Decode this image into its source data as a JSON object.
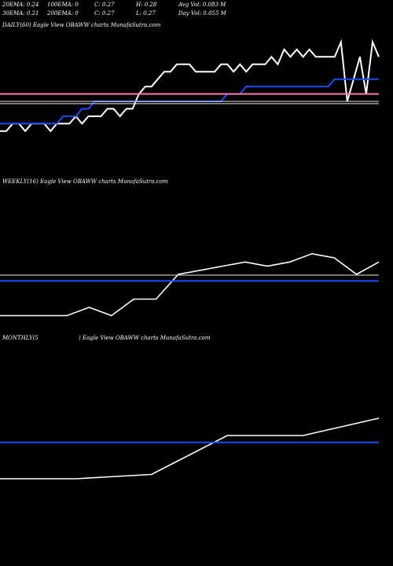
{
  "header": {
    "row1": {
      "ema20": "20EMA: 0.24",
      "ema100": "100EMA: 0",
      "close": "C: 0.27",
      "high": "H: 0.28",
      "avgvol": "Avg Vol: 0.083 M"
    },
    "row2": {
      "ema30": "30EMA: 0.21",
      "ema200": "200EMA: 0",
      "close": "C: 0.27",
      "low": "L: 0.27",
      "dayvol": "Day Vol: 0.055 M"
    }
  },
  "panels": {
    "daily": {
      "label": "DAILY(60) Eagle   View  OBAWW charts MunafaSutra.com"
    },
    "weekly": {
      "label": "WEEKLY(16) Eagle   View  OBAWW charts MunafaSutra.com"
    },
    "monthly": {
      "label_left": "MONTHLY(5",
      "label_right": ") Eagle   View  OBAWW charts MunafaSutra.com"
    }
  },
  "colors": {
    "price": "#ffffff",
    "ema_blue": "#1a4cff",
    "ema_pink": "#ff7fa8",
    "ref_white": "#e8e8e8",
    "background": "#000000"
  },
  "chart_data": [
    {
      "type": "line",
      "title": "DAILY(60)",
      "ylim": [
        0.14,
        0.32
      ],
      "series": [
        {
          "values": [
            0.19,
            0.19,
            0.2,
            0.2,
            0.19,
            0.2,
            0.2,
            0.2,
            0.19,
            0.2,
            0.2,
            0.2,
            0.21,
            0.2,
            0.21,
            0.21,
            0.21,
            0.22,
            0.22,
            0.21,
            0.22,
            0.22,
            0.24,
            0.25,
            0.25,
            0.26,
            0.27,
            0.27,
            0.28,
            0.28,
            0.28,
            0.27,
            0.27,
            0.27,
            0.27,
            0.28,
            0.28,
            0.27,
            0.28,
            0.27,
            0.28,
            0.28,
            0.28,
            0.29,
            0.28,
            0.3,
            0.29,
            0.3,
            0.29,
            0.3,
            0.29,
            0.29,
            0.29,
            0.29,
            0.31,
            0.23,
            0.26,
            0.29,
            0.24,
            0.31,
            0.29
          ]
        },
        {
          "values": [
            0.2,
            0.2,
            0.2,
            0.2,
            0.2,
            0.2,
            0.2,
            0.2,
            0.2,
            0.2,
            0.21,
            0.21,
            0.21,
            0.22,
            0.22,
            0.23,
            0.23,
            0.23,
            0.23,
            0.23,
            0.23,
            0.23,
            0.23,
            0.23,
            0.23,
            0.23,
            0.23,
            0.23,
            0.23,
            0.23,
            0.23,
            0.23,
            0.23,
            0.23,
            0.23,
            0.23,
            0.24,
            0.24,
            0.24,
            0.25,
            0.25,
            0.25,
            0.25,
            0.25,
            0.25,
            0.25,
            0.25,
            0.25,
            0.25,
            0.25,
            0.25,
            0.25,
            0.25,
            0.26,
            0.26,
            0.26,
            0.26,
            0.26,
            0.26,
            0.26,
            0.26
          ]
        },
        {
          "values": [
            0.24
          ]
        },
        {
          "values": [
            0.23
          ]
        },
        {
          "values": [
            0.227
          ]
        }
      ]
    },
    {
      "type": "line",
      "title": "WEEKLY(16)",
      "ylim": [
        0.14,
        0.3
      ],
      "series": [
        {
          "values": [
            0.15,
            0.15,
            0.15,
            0.15,
            0.16,
            0.15,
            0.17,
            0.17,
            0.2,
            0.205,
            0.21,
            0.215,
            0.21,
            0.215,
            0.225,
            0.22,
            0.2,
            0.215
          ]
        },
        {
          "values": [
            0.199
          ]
        },
        {
          "values": [
            0.192
          ]
        }
      ]
    },
    {
      "type": "line",
      "title": "MONTHLY(5)",
      "ylim": [
        0.14,
        0.3
      ],
      "series": [
        {
          "values": [
            0.15,
            0.15,
            0.155,
            0.2,
            0.2,
            0.22
          ]
        },
        {
          "values": [
            0.192
          ]
        }
      ]
    }
  ]
}
